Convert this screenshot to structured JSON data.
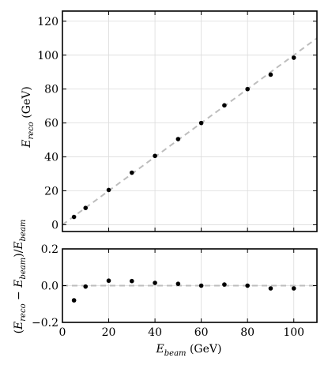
{
  "chart_data": [
    {
      "type": "scatter",
      "title": "",
      "xlabel": "",
      "ylabel": "E_reco (GeV)",
      "ylabel_main": "E",
      "ylabel_sub": "reco",
      "ylabel_unit": " (GeV)",
      "xlim": [
        0,
        110
      ],
      "ylim": [
        -4,
        126
      ],
      "x_ticks": [
        0,
        20,
        40,
        60,
        80,
        100
      ],
      "y_ticks": [
        0,
        20,
        40,
        60,
        80,
        100,
        120
      ],
      "y_tick_labels": [
        "0",
        "20",
        "40",
        "60",
        "80",
        "100",
        "120"
      ],
      "grid": true,
      "reference_line": "y = x (dashed)",
      "series": [
        {
          "x": [
            5,
            10,
            20,
            30,
            40,
            50,
            60,
            70,
            80,
            90,
            100
          ],
          "y": [
            4.6,
            9.9,
            20.5,
            30.7,
            40.6,
            50.5,
            60.0,
            70.4,
            80.0,
            88.5,
            98.5
          ]
        }
      ]
    },
    {
      "type": "scatter",
      "title": "",
      "xlabel": "E_beam (GeV)",
      "xlabel_main": "E",
      "xlabel_sub": "beam",
      "xlabel_unit": " (GeV)",
      "ylabel": "(E_reco − E_beam)/E_beam",
      "ylabel_parts": {
        "open": "(",
        "e1": "E",
        "s1": "reco",
        "minus": " − ",
        "e2": "E",
        "s2": "beam",
        "close": ")/",
        "e3": "E",
        "s3": "beam"
      },
      "xlim": [
        0,
        110
      ],
      "ylim": [
        -0.2,
        0.2
      ],
      "x_ticks": [
        0,
        20,
        40,
        60,
        80,
        100
      ],
      "x_tick_labels": [
        "0",
        "20",
        "40",
        "60",
        "80",
        "100"
      ],
      "y_ticks": [
        -0.2,
        0.0,
        0.2
      ],
      "y_tick_labels": [
        "−0.2",
        "0.0",
        "0.2"
      ],
      "grid": true,
      "reference_line": "y = 0 (dashed)",
      "series": [
        {
          "x": [
            5,
            10,
            20,
            30,
            40,
            50,
            60,
            70,
            80,
            90,
            100
          ],
          "y": [
            -0.08,
            -0.005,
            0.027,
            0.025,
            0.015,
            0.01,
            0.0,
            0.006,
            0.0,
            -0.015,
            -0.015
          ]
        }
      ]
    }
  ]
}
